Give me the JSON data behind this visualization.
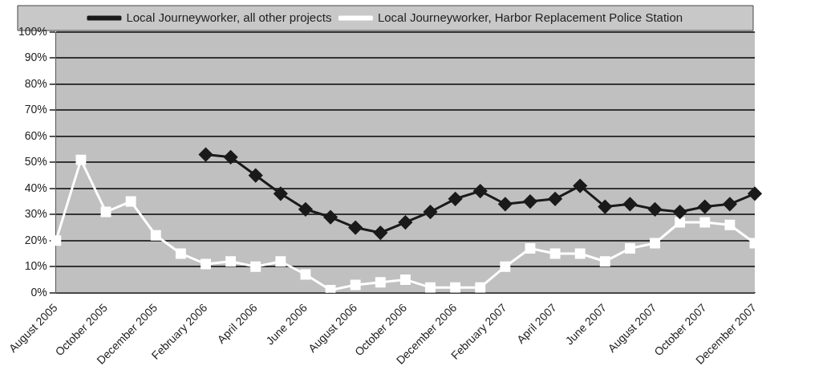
{
  "chart_data": {
    "type": "line",
    "categories": [
      "August 2005",
      null,
      "October 2005",
      null,
      "December 2005",
      null,
      "February 2006",
      null,
      "April 2006",
      null,
      "June 2006",
      null,
      "August 2006",
      null,
      "October 2006",
      null,
      "December 2006",
      null,
      "February 2007",
      null,
      "April 2007",
      null,
      "June 2007",
      null,
      "August 2007",
      null,
      "October 2007",
      null,
      "December 2007"
    ],
    "series": [
      {
        "name": "Local Journeyworker, all other projects",
        "color": "#1a1a1a",
        "marker": "diamond",
        "values": [
          null,
          null,
          null,
          null,
          null,
          null,
          53,
          52,
          45,
          38,
          32,
          29,
          25,
          23,
          27,
          31,
          36,
          39,
          34,
          35,
          36,
          41,
          33,
          34,
          32,
          31,
          33,
          34,
          38
        ]
      },
      {
        "name": "Local Journeyworker, Harbor Replacement Police Station",
        "color": "#ffffff",
        "marker": "square",
        "values": [
          20,
          51,
          31,
          35,
          22,
          15,
          11,
          12,
          10,
          12,
          7,
          1,
          3,
          4,
          5,
          2,
          2,
          2,
          10,
          17,
          15,
          15,
          12,
          17,
          19,
          27,
          27,
          26,
          19
        ]
      }
    ],
    "ylim": [
      0,
      100
    ],
    "yticks": [
      {
        "value": 0,
        "label": "0%"
      },
      {
        "value": 10,
        "label": "10%"
      },
      {
        "value": 20,
        "label": "20%"
      },
      {
        "value": 30,
        "label": "30%"
      },
      {
        "value": 40,
        "label": "40%"
      },
      {
        "value": 50,
        "label": "50%"
      },
      {
        "value": 60,
        "label": "60%"
      },
      {
        "value": 70,
        "label": "70%"
      },
      {
        "value": 80,
        "label": "80%"
      },
      {
        "value": 90,
        "label": "90%"
      },
      {
        "value": 100,
        "label": "100%"
      }
    ],
    "grid": "y",
    "legend": "top",
    "line_style": "solid"
  }
}
